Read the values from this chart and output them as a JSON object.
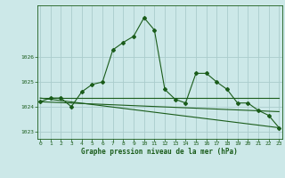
{
  "xlabel_label": "Graphe pression niveau de la mer (hPa)",
  "background_color": "#cce8e8",
  "grid_color": "#aacccc",
  "line_color": "#1a5c1a",
  "ylim": [
    1022.7,
    1028.1
  ],
  "xlim": [
    -0.3,
    23.3
  ],
  "yticks": [
    1023,
    1024,
    1025,
    1026
  ],
  "xticks": [
    0,
    1,
    2,
    3,
    4,
    5,
    6,
    7,
    8,
    9,
    10,
    11,
    12,
    13,
    14,
    15,
    16,
    17,
    18,
    19,
    20,
    21,
    22,
    23
  ],
  "series1_x": [
    0,
    1,
    2,
    3,
    4,
    5,
    6,
    7,
    8,
    9,
    10,
    11,
    12,
    13,
    14,
    15,
    16,
    17,
    18,
    19,
    20,
    21,
    22,
    23
  ],
  "series1_y": [
    1024.2,
    1024.35,
    1024.35,
    1024.0,
    1024.6,
    1024.9,
    1025.0,
    1026.3,
    1026.6,
    1026.85,
    1027.6,
    1027.1,
    1024.7,
    1024.3,
    1024.15,
    1025.35,
    1025.35,
    1025.0,
    1024.7,
    1024.15,
    1024.15,
    1023.85,
    1023.65,
    1023.15
  ],
  "series2_x": [
    0,
    23
  ],
  "series2_y": [
    1024.35,
    1024.35
  ],
  "series3_x": [
    0,
    23
  ],
  "series3_y": [
    1024.2,
    1023.8
  ],
  "series4_x": [
    0,
    23
  ],
  "series4_y": [
    1024.35,
    1023.15
  ]
}
